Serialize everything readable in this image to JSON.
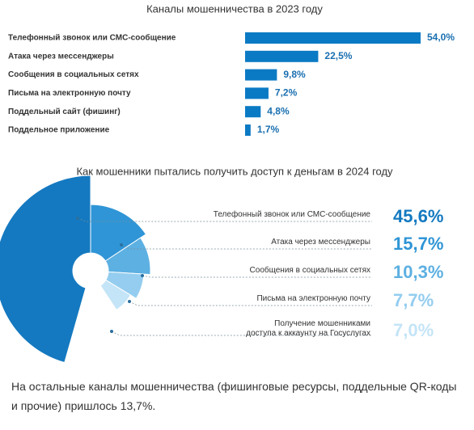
{
  "chart_data": [
    {
      "type": "hbar",
      "title": "Каналы мошенничества в 2023 году",
      "categories": [
        "Телефонный звонок или СМС-сообщение",
        "Атака через мессенджеры",
        "Сообщения в социальных сетях",
        "Письма на электронную почту",
        "Поддельный сайт (фишинг)",
        "Поддельное приложение"
      ],
      "values": [
        54.0,
        22.5,
        9.8,
        7.2,
        4.8,
        1.7
      ],
      "value_labels": [
        "54,0%",
        "22,5%",
        "9,8%",
        "7,2%",
        "4,8%",
        "1,7%"
      ],
      "color": "#0b7ac4"
    },
    {
      "type": "pie",
      "title": "Как мошенники пытались получить доступ к деньгам в 2024 году",
      "categories": [
        "Телефонный звонок или СМС-сообщение",
        "Атака через мессенджеры",
        "Сообщения в социальных сетях",
        "Письма на электронную почту",
        "Получение мошенниками\nдоступа к аккаунту на Госуслугах"
      ],
      "values": [
        45.6,
        15.7,
        10.3,
        7.7,
        7.0
      ],
      "value_labels": [
        "45,6%",
        "15,7%",
        "10,3%",
        "7,7%",
        "7,0%"
      ],
      "colors": [
        "#1479c0",
        "#2f95d6",
        "#5db0e2",
        "#94cdef",
        "#c4e4f7"
      ]
    }
  ],
  "footnote": "На остальные каналы мошенничества (фишинговые ресурсы, поддельные QR-коды и прочие) пришлось 13,7%."
}
